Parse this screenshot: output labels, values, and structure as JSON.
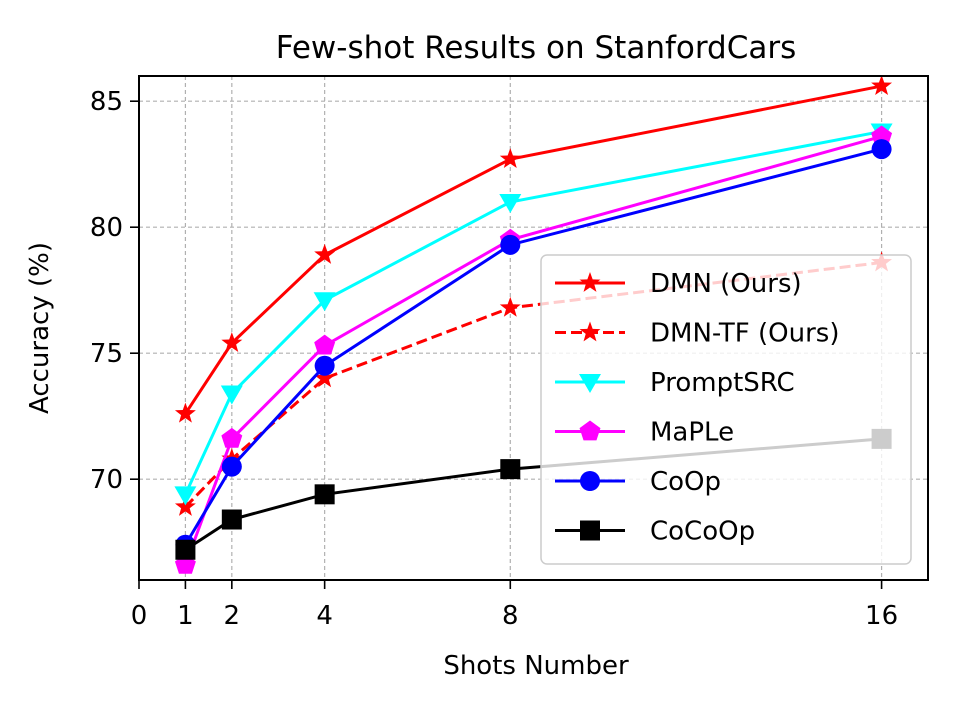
{
  "chart_data": {
    "type": "line",
    "title": "Few-shot Results on StanfordCars",
    "xlabel": "Shots Number",
    "ylabel": "Accuracy (%)",
    "x": [
      1,
      2,
      4,
      8,
      16
    ],
    "xticks": [
      0,
      1,
      2,
      4,
      8,
      16
    ],
    "yticks": [
      70,
      75,
      80,
      85
    ],
    "xlim": [
      0,
      17
    ],
    "ylim": [
      66.0,
      86.0
    ],
    "grid": true,
    "legend_position": "lower-right",
    "series": [
      {
        "name": "DMN (Ours)",
        "values": [
          72.6,
          75.4,
          78.9,
          82.7,
          85.6
        ],
        "color": "#ff0000",
        "marker": "star",
        "linestyle": "solid"
      },
      {
        "name": "DMN-TF (Ours)",
        "values": [
          68.9,
          70.8,
          74.0,
          76.8,
          78.6
        ],
        "color": "#ff0000",
        "marker": "star",
        "linestyle": "dashed"
      },
      {
        "name": "PromptSRC",
        "values": [
          69.4,
          73.4,
          77.1,
          81.0,
          83.8
        ],
        "color": "#00ffff",
        "marker": "triangle-down",
        "linestyle": "solid"
      },
      {
        "name": "MaPLe",
        "values": [
          66.6,
          71.6,
          75.3,
          79.5,
          83.6
        ],
        "color": "#ff00ff",
        "marker": "pentagon",
        "linestyle": "solid"
      },
      {
        "name": "CoOp",
        "values": [
          67.4,
          70.5,
          74.5,
          79.3,
          83.1
        ],
        "color": "#0000ff",
        "marker": "circle",
        "linestyle": "solid"
      },
      {
        "name": "CoCoOp",
        "values": [
          67.2,
          68.4,
          69.4,
          70.4,
          71.6
        ],
        "color": "#000000",
        "marker": "square",
        "linestyle": "solid"
      }
    ]
  }
}
